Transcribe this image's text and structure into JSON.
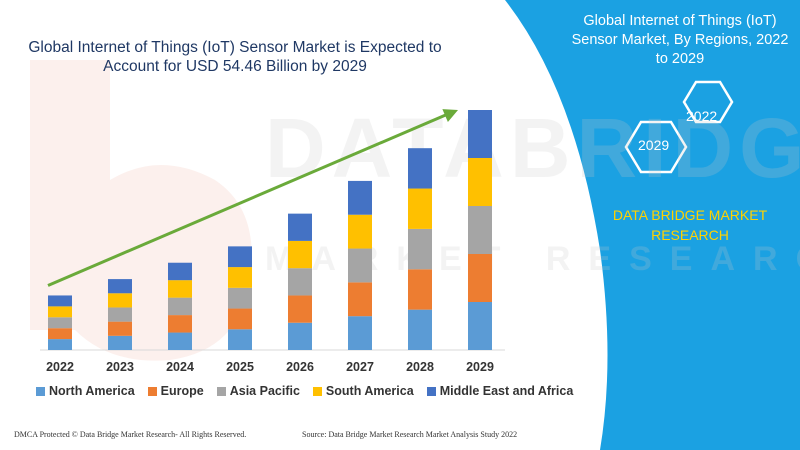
{
  "title": "Global Internet of Things (IoT) Sensor Market is Expected to Account for USD 54.46 Billion by 2029",
  "side_panel": {
    "title": "Global Internet of Things (IoT) Sensor Market, By Regions, 2022 to 2029",
    "year_start": "2022",
    "year_end": "2029",
    "brand": "DATA BRIDGE MARKET RESEARCH"
  },
  "footer": {
    "left": "DMCA Protected © Data Bridge Market Research- All Rights Reserved.",
    "right": "Source: Data Bridge Market Research Market Analysis Study 2022"
  },
  "colors": {
    "panel": "#1ba1e2",
    "arrow": "#6aaa3a",
    "watermark_red": "#f6dcd6"
  },
  "chart_data": {
    "type": "bar",
    "stacked": true,
    "categories": [
      "2022",
      "2023",
      "2024",
      "2025",
      "2026",
      "2027",
      "2028",
      "2029"
    ],
    "series": [
      {
        "name": "North America",
        "color": "#5b9bd5",
        "values": [
          10,
          13,
          16,
          19,
          25,
          31,
          37,
          44
        ]
      },
      {
        "name": "Europe",
        "color": "#ed7d31",
        "values": [
          10,
          13,
          16,
          19,
          25,
          31,
          37,
          44
        ]
      },
      {
        "name": "Asia Pacific",
        "color": "#a5a5a5",
        "values": [
          10,
          13,
          16,
          19,
          25,
          31,
          37,
          44
        ]
      },
      {
        "name": "South America",
        "color": "#ffc000",
        "values": [
          10,
          13,
          16,
          19,
          25,
          31,
          37,
          44
        ]
      },
      {
        "name": "Middle East and Africa",
        "color": "#4472c4",
        "values": [
          10,
          13,
          16,
          19,
          25,
          31,
          37,
          44
        ]
      }
    ],
    "ylim": [
      0,
      220
    ],
    "grid": false,
    "legend_position": "bottom",
    "trend_arrow": true
  }
}
